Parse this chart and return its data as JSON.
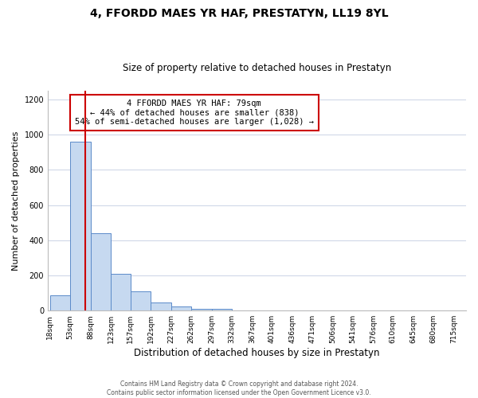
{
  "title": "4, FFORDD MAES YR HAF, PRESTATYN, LL19 8YL",
  "subtitle": "Size of property relative to detached houses in Prestatyn",
  "xlabel": "Distribution of detached houses by size in Prestatyn",
  "ylabel": "Number of detached properties",
  "bar_edges": [
    18,
    53,
    88,
    123,
    157,
    192,
    227,
    262,
    297,
    332,
    367,
    401,
    436,
    471,
    506,
    541,
    576,
    610,
    645,
    680,
    715
  ],
  "bar_heights": [
    85,
    960,
    440,
    210,
    110,
    47,
    22,
    10,
    8,
    0,
    0,
    0,
    0,
    0,
    0,
    0,
    0,
    0,
    0,
    0
  ],
  "bar_color": "#c6d9f0",
  "bar_edge_color": "#5b8ac9",
  "property_line_x": 79,
  "property_line_color": "#cc0000",
  "annotation_title": "4 FFORDD MAES YR HAF: 79sqm",
  "annotation_line1": "← 44% of detached houses are smaller (838)",
  "annotation_line2": "54% of semi-detached houses are larger (1,028) →",
  "annotation_box_facecolor": "#ffffff",
  "annotation_box_edgecolor": "#cc0000",
  "ylim": [
    0,
    1250
  ],
  "yticks": [
    0,
    200,
    400,
    600,
    800,
    1000,
    1200
  ],
  "tick_labels": [
    "18sqm",
    "53sqm",
    "88sqm",
    "123sqm",
    "157sqm",
    "192sqm",
    "227sqm",
    "262sqm",
    "297sqm",
    "332sqm",
    "367sqm",
    "401sqm",
    "436sqm",
    "471sqm",
    "506sqm",
    "541sqm",
    "576sqm",
    "610sqm",
    "645sqm",
    "680sqm",
    "715sqm"
  ],
  "footer_line1": "Contains HM Land Registry data © Crown copyright and database right 2024.",
  "footer_line2": "Contains public sector information licensed under the Open Government Licence v3.0.",
  "background_color": "#ffffff",
  "grid_color": "#d0d8e8",
  "title_fontsize": 10,
  "subtitle_fontsize": 8.5,
  "ylabel_fontsize": 8,
  "xlabel_fontsize": 8.5,
  "tick_fontsize": 6.5,
  "annotation_fontsize": 7.5,
  "footer_fontsize": 5.5
}
